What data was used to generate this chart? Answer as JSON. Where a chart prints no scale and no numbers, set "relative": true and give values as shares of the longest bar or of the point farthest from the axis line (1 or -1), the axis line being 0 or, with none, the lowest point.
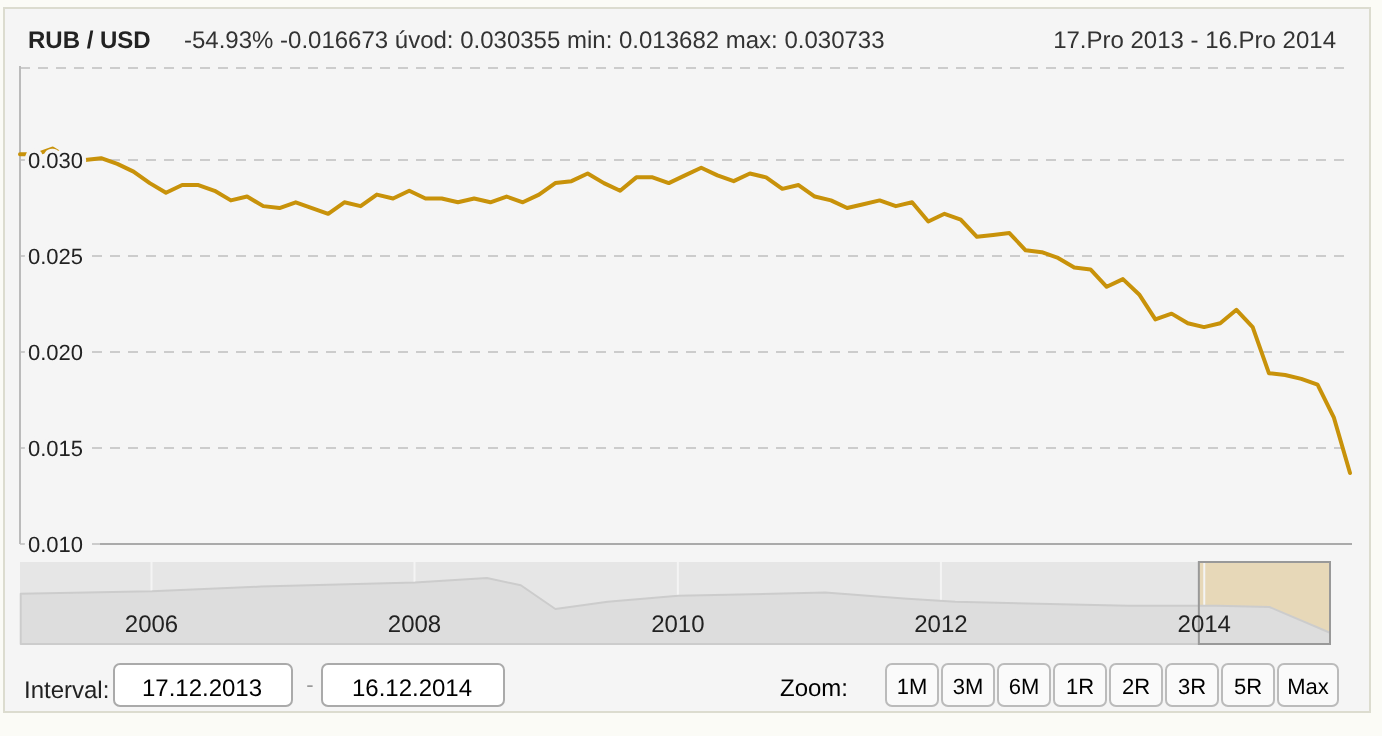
{
  "chart_data": [
    {
      "type": "line",
      "title": "RUB / USD",
      "subtitle": "-54.93% -0.016673  úvod: 0.030355 min: 0.013682 max: 0.030733",
      "annotations": [
        "17.Pro 2013 - 16.Pro 2014"
      ],
      "categories": [
        null,
        null,
        null,
        null,
        null,
        null,
        null,
        null,
        null,
        null,
        null,
        null,
        null,
        null,
        null,
        null,
        null,
        null,
        null,
        null,
        null,
        null,
        null,
        null,
        null,
        null,
        null,
        null,
        null,
        null,
        null,
        null,
        null,
        null,
        null,
        null,
        null,
        null,
        null,
        null,
        null,
        null,
        null,
        null,
        null,
        null,
        null,
        null,
        null,
        null,
        null,
        null,
        null,
        null,
        null,
        null,
        null,
        null,
        null,
        null,
        null,
        null,
        null,
        null,
        null,
        null,
        null,
        null,
        null,
        null,
        null,
        null,
        null,
        null,
        null,
        null,
        null,
        null,
        null,
        null,
        null,
        null,
        null
      ],
      "series": [
        {
          "color": "#c8920a",
          "values": [
            0.0303,
            0.0303,
            0.0306,
            0.0301,
            0.03,
            0.0301,
            0.0298,
            0.0294,
            0.0288,
            0.0283,
            0.0287,
            0.0287,
            0.0284,
            0.0279,
            0.0281,
            0.0276,
            0.0275,
            0.0278,
            0.0275,
            0.0272,
            0.0278,
            0.0276,
            0.0282,
            0.028,
            0.0284,
            0.028,
            0.028,
            0.0278,
            0.028,
            0.0278,
            0.0281,
            0.0278,
            0.0282,
            0.0288,
            0.0289,
            0.0293,
            0.0288,
            0.0284,
            0.0291,
            0.0291,
            0.0288,
            0.0292,
            0.0296,
            0.0292,
            0.0289,
            0.0293,
            0.0291,
            0.0285,
            0.0287,
            0.0281,
            0.0279,
            0.0275,
            0.0277,
            0.0279,
            0.0276,
            0.0278,
            0.0268,
            0.0272,
            0.0269,
            0.026,
            0.0261,
            0.0262,
            0.0253,
            0.0252,
            0.0249,
            0.0244,
            0.0243,
            0.0234,
            0.0238,
            0.023,
            0.0217,
            0.022,
            0.0215,
            0.0213,
            0.0215,
            0.0222,
            0.0213,
            0.0189,
            0.0188,
            0.0186,
            0.0183,
            0.0166,
            0.0137
          ]
        }
      ],
      "ylim": [
        0.01,
        0.0349
      ],
      "yticks": [
        {
          "value": 0.01,
          "label": "0.010"
        },
        {
          "value": 0.015,
          "label": "0.015"
        },
        {
          "value": 0.02,
          "label": "0.020"
        },
        {
          "value": 0.025,
          "label": "0.025"
        },
        {
          "value": 0.03,
          "label": "0.030"
        }
      ],
      "grid": "y",
      "tick_labels": "y"
    },
    {
      "type": "area",
      "relative": true,
      "x": [
        "2005-01-03",
        "2006-01-02",
        "2006-11-01",
        "2008-01-02",
        "2008-07-20",
        "2008-10-22",
        "2009-01-26",
        "2009-06-20",
        "2010-01-02",
        "2011-02-14",
        "2011-09-20",
        "2012-02-10",
        "2013-06-05",
        "2014-02-05",
        "2014-07-01",
        "2014-12-16"
      ],
      "series": [
        {
          "color": "#dddddd",
          "values": [
            0.76,
            0.8,
            0.87,
            0.93,
            1,
            0.89,
            0.53,
            0.64,
            0.73,
            0.78,
            0.69,
            0.64,
            0.58,
            0.58,
            0.56,
            0.17
          ]
        }
      ],
      "xlim": [
        "2005-01-01",
        "2014-12-16"
      ],
      "xticks": [
        {
          "value": "2006-01-01",
          "label": "2006"
        },
        {
          "value": "2008-01-01",
          "label": "2008"
        },
        {
          "value": "2010-01-01",
          "label": "2010"
        },
        {
          "value": "2012-01-01",
          "label": "2012"
        },
        {
          "value": "2014-01-01",
          "label": "2014"
        }
      ],
      "bands": [
        {
          "axis": "x",
          "from": "2013-12-17",
          "to": "2014-12-16",
          "color": "#e8c98a"
        }
      ],
      "grid": "x",
      "annotations": [
        "Interval:",
        "17.12.2013",
        "-",
        "16.12.2014",
        "Zoom:",
        "1M",
        "3M",
        "6M",
        "1R",
        "2R",
        "3R",
        "5R",
        "Max"
      ]
    }
  ]
}
